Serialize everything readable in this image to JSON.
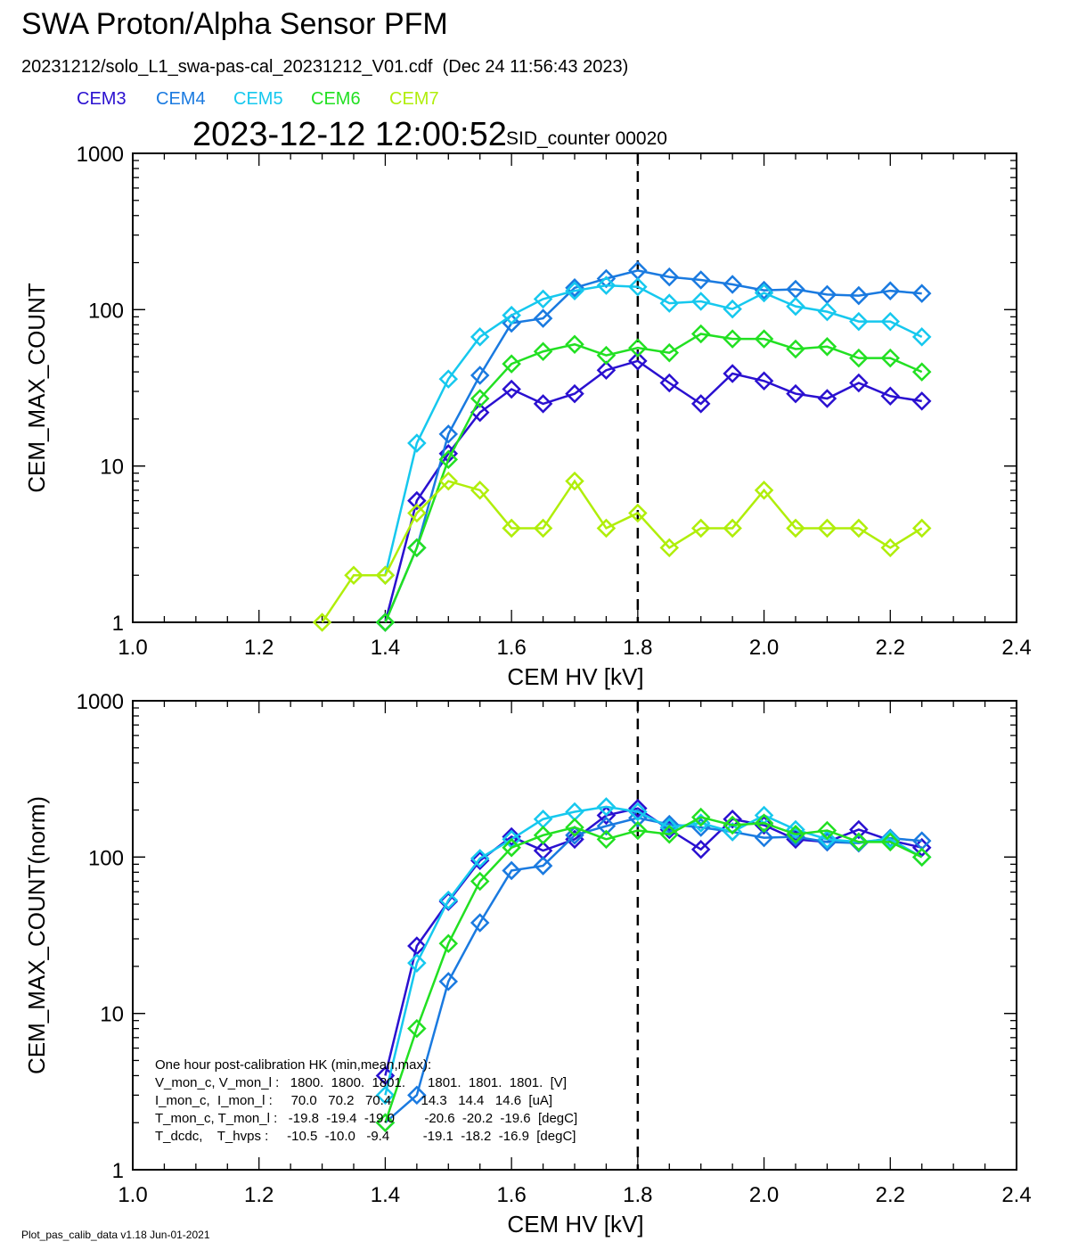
{
  "header": {
    "title": "SWA Proton/Alpha Sensor PFM",
    "subtitle": "20231212/solo_L1_swa-pas-cal_20231212_V01.cdf  (Dec 24 11:56:43 2023)",
    "timestamp": "2023-12-12 12:00:52",
    "sid": "SID_counter 00020"
  },
  "legend": [
    {
      "label": "CEM3",
      "color": "#2a10d0"
    },
    {
      "label": "CEM4",
      "color": "#1a7ae0"
    },
    {
      "label": "CEM5",
      "color": "#16c8ee"
    },
    {
      "label": "CEM6",
      "color": "#22e022"
    },
    {
      "label": "CEM7",
      "color": "#b0ee0a"
    }
  ],
  "footer": "Plot_pas_calib_data v1.18 Jun-01-2021",
  "chart_data": [
    {
      "type": "line",
      "xlabel": "CEM HV [kV]",
      "ylabel": "CEM_MAX_COUNT",
      "xlim": [
        1.0,
        2.4
      ],
      "ylim": [
        1,
        1000
      ],
      "yscale": "log",
      "xticks": [
        "1.0",
        "1.2",
        "1.4",
        "1.6",
        "1.8",
        "2.0",
        "2.2",
        "2.4"
      ],
      "yticks": [
        "1",
        "10",
        "100",
        "1000"
      ],
      "vline": 1.8,
      "marker": "diamond",
      "x": [
        1.3,
        1.35,
        1.4,
        1.45,
        1.5,
        1.55,
        1.6,
        1.65,
        1.7,
        1.75,
        1.8,
        1.85,
        1.9,
        1.95,
        2.0,
        2.05,
        2.1,
        2.15,
        2.2,
        2.25
      ],
      "series": [
        {
          "name": "CEM3",
          "color": "#2a10d0",
          "values": [
            null,
            null,
            1,
            6,
            12,
            22,
            31,
            25,
            29,
            41,
            47,
            34,
            25,
            39,
            35,
            29,
            27,
            34,
            28,
            26
          ]
        },
        {
          "name": "CEM4",
          "color": "#1a7ae0",
          "values": [
            null,
            null,
            1,
            3,
            16,
            38,
            82,
            88,
            138,
            158,
            178,
            162,
            155,
            145,
            133,
            135,
            125,
            123,
            132,
            127
          ]
        },
        {
          "name": "CEM5",
          "color": "#16c8ee",
          "values": [
            null,
            null,
            2,
            14,
            36,
            67,
            92,
            117,
            132,
            143,
            140,
            110,
            113,
            101,
            128,
            105,
            97,
            84,
            84,
            67
          ]
        },
        {
          "name": "CEM6",
          "color": "#22e022",
          "values": [
            null,
            null,
            1,
            3,
            11,
            27,
            45,
            54,
            60,
            51,
            57,
            53,
            70,
            65,
            65,
            56,
            58,
            49,
            49,
            40
          ]
        },
        {
          "name": "CEM7",
          "color": "#b0ee0a",
          "values": [
            1,
            2,
            2,
            5,
            8,
            7,
            4,
            4,
            8,
            4,
            5,
            3,
            4,
            4,
            7,
            4,
            4,
            4,
            3,
            4
          ]
        }
      ]
    },
    {
      "type": "line",
      "xlabel": "CEM HV [kV]",
      "ylabel": "CEM_MAX_COUNT(norm)",
      "xlim": [
        1.0,
        2.4
      ],
      "ylim": [
        1,
        1000
      ],
      "yscale": "log",
      "xticks": [
        "1.0",
        "1.2",
        "1.4",
        "1.6",
        "1.8",
        "2.0",
        "2.2",
        "2.4"
      ],
      "yticks": [
        "1",
        "10",
        "100",
        "1000"
      ],
      "vline": 1.8,
      "marker": "diamond",
      "x": [
        1.4,
        1.45,
        1.5,
        1.55,
        1.6,
        1.65,
        1.7,
        1.75,
        1.8,
        1.85,
        1.9,
        1.95,
        2.0,
        2.05,
        2.1,
        2.15,
        2.2,
        2.25
      ],
      "series": [
        {
          "name": "CEM3",
          "color": "#2a10d0",
          "values": [
            4,
            27,
            52,
            95,
            135,
            110,
            130,
            185,
            205,
            150,
            112,
            175,
            160,
            130,
            125,
            150,
            128,
            115
          ]
        },
        {
          "name": "CEM4",
          "color": "#1a7ae0",
          "values": [
            2,
            3,
            16,
            38,
            82,
            88,
            138,
            158,
            178,
            162,
            155,
            145,
            133,
            135,
            125,
            123,
            132,
            127
          ]
        },
        {
          "name": "CEM5",
          "color": "#16c8ee",
          "values": [
            3,
            21,
            53,
            98,
            130,
            175,
            195,
            210,
            195,
            155,
            165,
            145,
            185,
            150,
            130,
            125,
            130,
            100
          ]
        },
        {
          "name": "CEM6",
          "color": "#22e022",
          "values": [
            2,
            8,
            28,
            70,
            115,
            138,
            155,
            130,
            148,
            140,
            180,
            160,
            165,
            140,
            148,
            125,
            125,
            100
          ]
        }
      ]
    }
  ],
  "annotation": {
    "lines": [
      "One hour post-calibration HK (min,mean,max):",
      "V_mon_c, V_mon_l :   1800.  1800.  1801.      1801.  1801.  1801.  [V]",
      "I_mon_c,  I_mon_l :     70.0   70.2   70.4        14.3   14.4   14.6  [uA]",
      "T_mon_c, T_mon_l :   -19.8  -19.4  -19.0        -20.6  -20.2  -19.6  [degC]",
      "T_dcdc,    T_hvps :     -10.5  -10.0   -9.4         -19.1  -18.2  -16.9  [degC]"
    ]
  }
}
